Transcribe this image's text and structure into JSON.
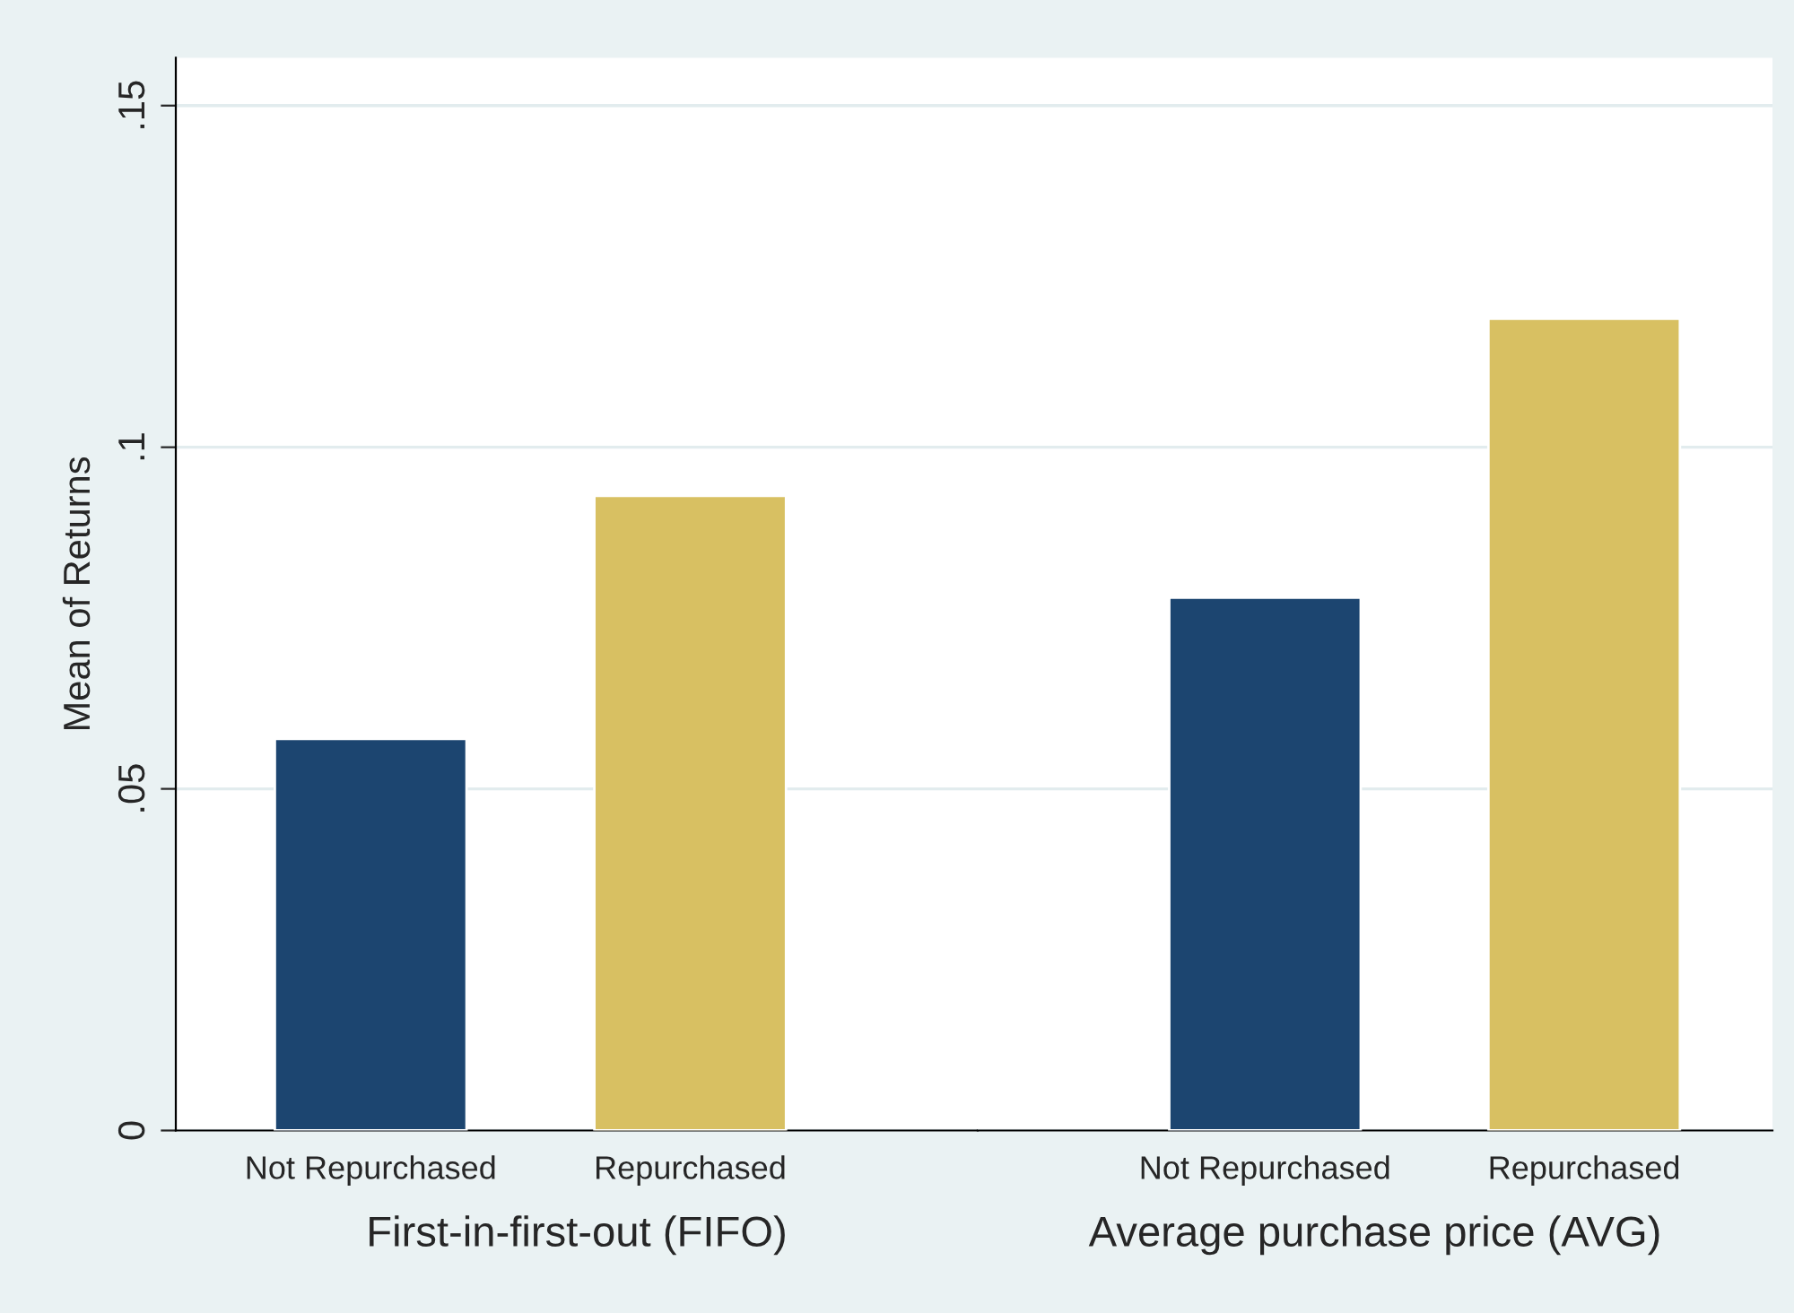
{
  "chart_data": [
    {
      "type": "bar",
      "ylabel": "Mean of Returns",
      "xlabel": "First-in-first-out (FIFO)",
      "categories": [
        "Not Repurchased",
        "Repurchased"
      ],
      "values": [
        0.0573,
        0.0929
      ],
      "colors": [
        "#1c4570",
        "#d8c062"
      ],
      "ylim": [
        0,
        0.157
      ],
      "yticks": [
        {
          "value": 0,
          "label": "0"
        },
        {
          "value": 0.05,
          "label": ".05"
        },
        {
          "value": 0.1,
          "label": ".1"
        },
        {
          "value": 0.15,
          "label": ".15"
        }
      ],
      "grid": "y"
    },
    {
      "type": "bar",
      "xlabel": "Average purchase price (AVG)",
      "categories": [
        "Not Repurchased",
        "Repurchased"
      ],
      "values": [
        0.078,
        0.1188
      ],
      "colors": [
        "#1c4570",
        "#d8c062"
      ],
      "ylim": [
        0,
        0.157
      ],
      "yticks": [
        {
          "value": 0,
          "label": null
        },
        {
          "value": 0.05,
          "label": null
        },
        {
          "value": 0.1,
          "label": null
        },
        {
          "value": 0.15,
          "label": null
        }
      ],
      "grid": "y",
      "tick_labels": "x"
    }
  ]
}
